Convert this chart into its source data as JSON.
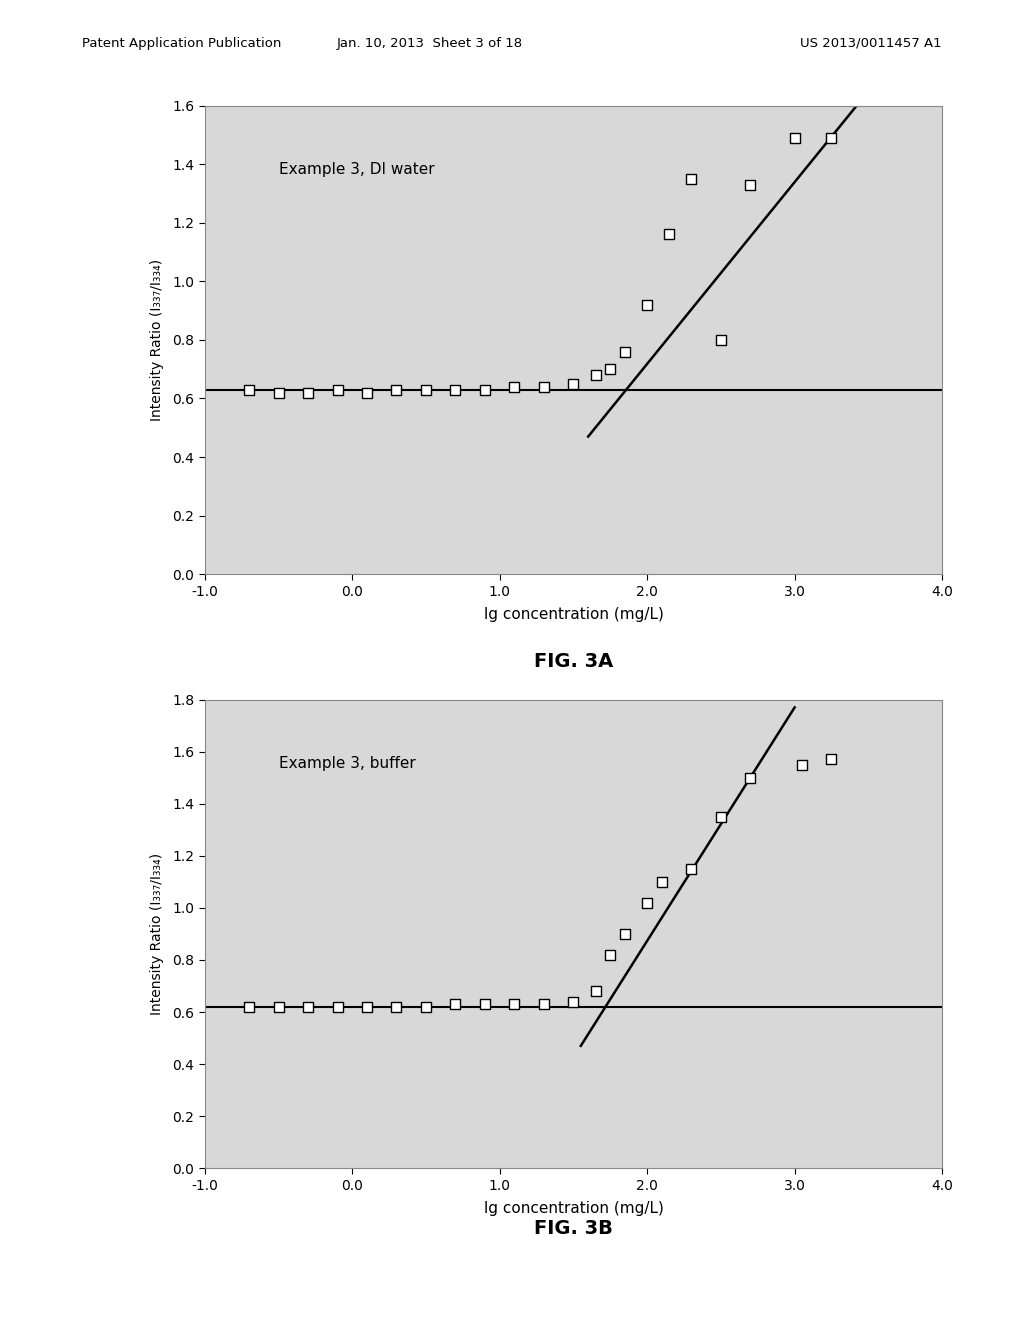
{
  "fig3a": {
    "label": "Example 3, DI water",
    "scatter_x": [
      -0.7,
      -0.5,
      -0.3,
      -0.1,
      0.1,
      0.3,
      0.5,
      0.7,
      0.9,
      1.1,
      1.3,
      1.5,
      1.65,
      1.75,
      1.85,
      2.0,
      2.15,
      2.3,
      2.5,
      2.7,
      3.0,
      3.25
    ],
    "scatter_y": [
      0.63,
      0.62,
      0.62,
      0.63,
      0.62,
      0.63,
      0.63,
      0.63,
      0.63,
      0.64,
      0.64,
      0.65,
      0.68,
      0.7,
      0.76,
      0.92,
      1.16,
      1.35,
      0.8,
      1.33,
      1.49,
      1.49
    ],
    "line1_x": [
      -1.0,
      4.0
    ],
    "line1_y": [
      0.63,
      0.63
    ],
    "line2_x": [
      1.6,
      3.55
    ],
    "line2_y": [
      0.47,
      1.68
    ],
    "xlim": [
      -1.0,
      4.0
    ],
    "ylim": [
      0.0,
      1.6
    ],
    "yticks": [
      0.0,
      0.2,
      0.4,
      0.6,
      0.8,
      1.0,
      1.2,
      1.4,
      1.6
    ],
    "xticks": [
      -1.0,
      0.0,
      1.0,
      2.0,
      3.0,
      4.0
    ],
    "xlabel": "lg concentration (mg/L)",
    "ylabel": "Intensity Ratio (I₃₃₇/I₃₃₄)",
    "fig_label": "FIG. 3A"
  },
  "fig3b": {
    "label": "Example 3, buffer",
    "scatter_x": [
      -0.7,
      -0.5,
      -0.3,
      -0.1,
      0.1,
      0.3,
      0.5,
      0.7,
      0.9,
      1.1,
      1.3,
      1.5,
      1.65,
      1.75,
      1.85,
      2.0,
      2.1,
      2.3,
      2.5,
      2.7,
      3.05,
      3.25
    ],
    "scatter_y": [
      0.62,
      0.62,
      0.62,
      0.62,
      0.62,
      0.62,
      0.62,
      0.63,
      0.63,
      0.63,
      0.63,
      0.64,
      0.68,
      0.82,
      0.9,
      1.02,
      1.1,
      1.15,
      1.35,
      1.5,
      1.55,
      1.57
    ],
    "line1_x": [
      -1.0,
      4.0
    ],
    "line1_y": [
      0.62,
      0.62
    ],
    "line2_x": [
      1.55,
      3.0
    ],
    "line2_y": [
      0.47,
      1.77
    ],
    "xlim": [
      -1.0,
      4.0
    ],
    "ylim": [
      0.0,
      1.8
    ],
    "yticks": [
      0.0,
      0.2,
      0.4,
      0.6,
      0.8,
      1.0,
      1.2,
      1.4,
      1.6,
      1.8
    ],
    "xticks": [
      -1.0,
      0.0,
      1.0,
      2.0,
      3.0,
      4.0
    ],
    "xlabel": "lg concentration (mg/L)",
    "ylabel": "Intensity Ratio (I₃₃₇/I₃₃₄)",
    "fig_label": "FIG. 3B"
  },
  "header_left": "Patent Application Publication",
  "header_mid": "Jan. 10, 2013  Sheet 3 of 18",
  "header_right": "US 2013/0011457 A1",
  "bg_color": "#ffffff",
  "plot_bg_color": "#d8d8d8",
  "line_color": "#000000",
  "scatter_facecolor": "#ffffff",
  "scatter_edgecolor": "#000000"
}
